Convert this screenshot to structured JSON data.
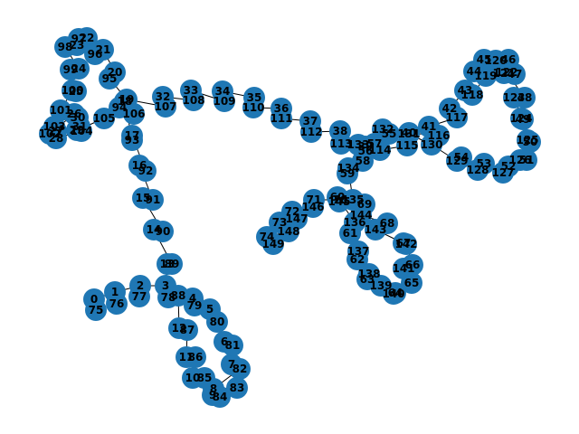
{
  "graph": {
    "node_color": "#1f77b4",
    "label_color": "#000000",
    "edge_color": "#000000",
    "nodes": [
      "0",
      "1",
      "2",
      "3",
      "4",
      "5",
      "6",
      "7",
      "8",
      "9",
      "10",
      "11",
      "12",
      "13",
      "14",
      "15",
      "16",
      "17",
      "18",
      "19",
      "20",
      "21",
      "22",
      "23",
      "24",
      "25",
      "26",
      "27",
      "28",
      "29",
      "30",
      "31",
      "32",
      "33",
      "34",
      "35",
      "36",
      "37",
      "38",
      "39",
      "40",
      "41",
      "42",
      "43",
      "44",
      "45",
      "46",
      "47",
      "48",
      "49",
      "50",
      "51",
      "52",
      "53",
      "54",
      "55",
      "56",
      "57",
      "58",
      "59",
      "60",
      "61",
      "62",
      "63",
      "64",
      "65",
      "66",
      "67",
      "68",
      "69",
      "70",
      "71",
      "72",
      "73",
      "74",
      "75",
      "76",
      "77",
      "78",
      "79",
      "80",
      "81",
      "82",
      "83",
      "84",
      "85",
      "86",
      "87",
      "88",
      "89",
      "90",
      "91",
      "92",
      "93",
      "94",
      "95",
      "96",
      "97",
      "98",
      "99",
      "100",
      "101",
      "102",
      "103",
      "104",
      "105",
      "106",
      "107",
      "108",
      "109",
      "110",
      "111",
      "112",
      "113",
      "114",
      "115",
      "116",
      "117",
      "118",
      "119",
      "120",
      "121",
      "122",
      "123",
      "124",
      "125",
      "126",
      "127",
      "128",
      "129",
      "130",
      "131",
      "132",
      "133",
      "134",
      "135",
      "136",
      "137",
      "138",
      "139",
      "140",
      "141",
      "142",
      "143",
      "144",
      "145",
      "146",
      "147",
      "148",
      "149"
    ],
    "edges": [
      [
        "75",
        "0"
      ],
      [
        "0",
        "1"
      ],
      [
        "76",
        "1"
      ],
      [
        "1",
        "2"
      ],
      [
        "2",
        "77"
      ],
      [
        "2",
        "3"
      ],
      [
        "3",
        "78"
      ],
      [
        "3",
        "4"
      ],
      [
        "4",
        "79"
      ],
      [
        "79",
        "5"
      ],
      [
        "5",
        "80"
      ],
      [
        "80",
        "6"
      ],
      [
        "6",
        "81"
      ],
      [
        "81",
        "7"
      ],
      [
        "7",
        "82"
      ],
      [
        "82",
        "8"
      ],
      [
        "8",
        "83"
      ],
      [
        "83",
        "84"
      ],
      [
        "84",
        "9"
      ],
      [
        "9",
        "85"
      ],
      [
        "85",
        "10"
      ],
      [
        "10",
        "86"
      ],
      [
        "86",
        "11"
      ],
      [
        "11",
        "87"
      ],
      [
        "87",
        "12"
      ],
      [
        "12",
        "88"
      ],
      [
        "88",
        "3"
      ],
      [
        "78",
        "88"
      ],
      [
        "3",
        "13"
      ],
      [
        "13",
        "89"
      ],
      [
        "89",
        "14"
      ],
      [
        "14",
        "90"
      ],
      [
        "90",
        "15"
      ],
      [
        "15",
        "91"
      ],
      [
        "91",
        "16"
      ],
      [
        "16",
        "92"
      ],
      [
        "92",
        "17"
      ],
      [
        "17",
        "93"
      ],
      [
        "93",
        "18"
      ],
      [
        "18",
        "19"
      ],
      [
        "19",
        "94"
      ],
      [
        "19",
        "95"
      ],
      [
        "95",
        "20"
      ],
      [
        "20",
        "21"
      ],
      [
        "21",
        "96"
      ],
      [
        "96",
        "22"
      ],
      [
        "22",
        "97"
      ],
      [
        "97",
        "23"
      ],
      [
        "23",
        "98"
      ],
      [
        "98",
        "24"
      ],
      [
        "24",
        "99"
      ],
      [
        "99",
        "25"
      ],
      [
        "25",
        "100"
      ],
      [
        "100",
        "101"
      ],
      [
        "101",
        "26"
      ],
      [
        "26",
        "102"
      ],
      [
        "102",
        "27"
      ],
      [
        "27",
        "103"
      ],
      [
        "103",
        "28"
      ],
      [
        "28",
        "104"
      ],
      [
        "104",
        "29"
      ],
      [
        "29",
        "105"
      ],
      [
        "105",
        "106"
      ],
      [
        "106",
        "19"
      ],
      [
        "19",
        "107"
      ],
      [
        "107",
        "32"
      ],
      [
        "32",
        "108"
      ],
      [
        "108",
        "33"
      ],
      [
        "33",
        "109"
      ],
      [
        "109",
        "34"
      ],
      [
        "34",
        "35"
      ],
      [
        "35",
        "110"
      ],
      [
        "110",
        "36"
      ],
      [
        "36",
        "111"
      ],
      [
        "111",
        "37"
      ],
      [
        "37",
        "112"
      ],
      [
        "112",
        "38"
      ],
      [
        "38",
        "113"
      ],
      [
        "113",
        "39"
      ],
      [
        "39",
        "114"
      ],
      [
        "114",
        "115"
      ],
      [
        "115",
        "40"
      ],
      [
        "40",
        "116"
      ],
      [
        "116",
        "41"
      ],
      [
        "41",
        "117"
      ],
      [
        "117",
        "42"
      ],
      [
        "42",
        "43"
      ],
      [
        "43",
        "118"
      ],
      [
        "118",
        "119"
      ],
      [
        "119",
        "44"
      ],
      [
        "44",
        "45"
      ],
      [
        "45",
        "120"
      ],
      [
        "120",
        "46"
      ],
      [
        "46",
        "121"
      ],
      [
        "121",
        "47"
      ],
      [
        "47",
        "122"
      ],
      [
        "122",
        "48"
      ],
      [
        "48",
        "123"
      ],
      [
        "123",
        "49"
      ],
      [
        "49",
        "124"
      ],
      [
        "124",
        "50"
      ],
      [
        "50",
        "125"
      ],
      [
        "125",
        "51"
      ],
      [
        "51",
        "126"
      ],
      [
        "126",
        "52"
      ],
      [
        "52",
        "127"
      ],
      [
        "127",
        "53"
      ],
      [
        "53",
        "128"
      ],
      [
        "128",
        "54"
      ],
      [
        "54",
        "129"
      ],
      [
        "129",
        "130"
      ],
      [
        "130",
        "131"
      ],
      [
        "131",
        "132"
      ],
      [
        "132",
        "133"
      ],
      [
        "133",
        "55"
      ],
      [
        "55",
        "56"
      ],
      [
        "56",
        "57"
      ],
      [
        "57",
        "39"
      ],
      [
        "39",
        "58"
      ],
      [
        "58",
        "59"
      ],
      [
        "59",
        "134"
      ],
      [
        "134",
        "135"
      ],
      [
        "135",
        "60"
      ],
      [
        "60",
        "136"
      ],
      [
        "136",
        "61"
      ],
      [
        "61",
        "62"
      ],
      [
        "62",
        "137"
      ],
      [
        "137",
        "63"
      ],
      [
        "63",
        "138"
      ],
      [
        "138",
        "139"
      ],
      [
        "139",
        "64"
      ],
      [
        "64",
        "140"
      ],
      [
        "140",
        "65"
      ],
      [
        "65",
        "141"
      ],
      [
        "141",
        "66"
      ],
      [
        "66",
        "142"
      ],
      [
        "142",
        "67"
      ],
      [
        "67",
        "143"
      ],
      [
        "143",
        "68"
      ],
      [
        "68",
        "144"
      ],
      [
        "144",
        "69"
      ],
      [
        "69",
        "145"
      ],
      [
        "145",
        "70"
      ],
      [
        "70",
        "71"
      ],
      [
        "71",
        "146"
      ],
      [
        "146",
        "72"
      ],
      [
        "72",
        "147"
      ],
      [
        "147",
        "73"
      ],
      [
        "73",
        "148"
      ],
      [
        "148",
        "74"
      ],
      [
        "74",
        "149"
      ]
    ]
  }
}
